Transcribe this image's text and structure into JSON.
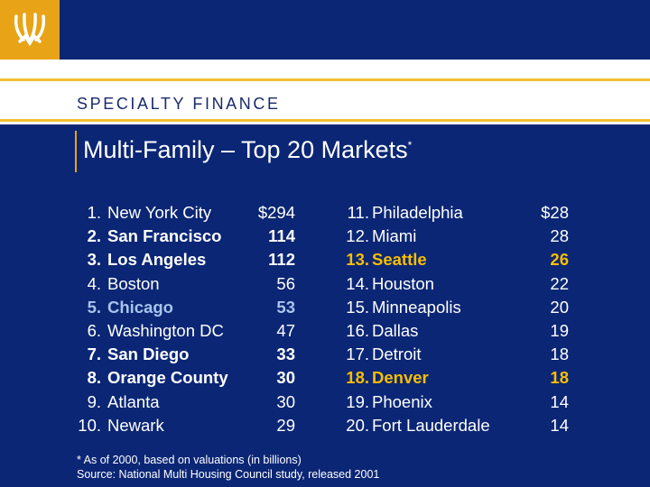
{
  "header": {
    "brand": "SPECIALTY FINANCE",
    "logo": "wheat-sheaf-logo"
  },
  "title": {
    "text": "Multi-Family – Top 20 Markets",
    "mark": "*"
  },
  "colors": {
    "background": "#0b2675",
    "gold": "#e8a317",
    "highlight_blue": "#a9c4ec",
    "highlight_gold": "#f6be00"
  },
  "left": [
    {
      "rank": "1.",
      "city": "New York City",
      "value": "$294",
      "style": ""
    },
    {
      "rank": "2.",
      "city": "San Francisco",
      "value": "114",
      "style": "b"
    },
    {
      "rank": "3.",
      "city": "Los Angeles",
      "value": "112",
      "style": "b"
    },
    {
      "rank": "4.",
      "city": "Boston",
      "value": "56",
      "style": ""
    },
    {
      "rank": "5.",
      "city": "Chicago",
      "value": "53",
      "style": "b chi"
    },
    {
      "rank": "6.",
      "city": "Washington DC",
      "value": "47",
      "style": ""
    },
    {
      "rank": "7.",
      "city": "San Diego",
      "value": "33",
      "style": "b"
    },
    {
      "rank": "8.",
      "city": "Orange County",
      "value": "30",
      "style": "b"
    },
    {
      "rank": "9.",
      "city": "Atlanta",
      "value": "30",
      "style": ""
    },
    {
      "rank": "10.",
      "city": "Newark",
      "value": "29",
      "style": ""
    }
  ],
  "right": [
    {
      "rank": "11.",
      "city": "Philadelphia",
      "value": "$28",
      "style": ""
    },
    {
      "rank": "12.",
      "city": "Miami",
      "value": "28",
      "style": ""
    },
    {
      "rank": "13.",
      "city": "Seattle",
      "value": "26",
      "style": "b gold"
    },
    {
      "rank": "14.",
      "city": "Houston",
      "value": "22",
      "style": ""
    },
    {
      "rank": "15.",
      "city": "Minneapolis",
      "value": "20",
      "style": ""
    },
    {
      "rank": "16.",
      "city": "Dallas",
      "value": "19",
      "style": ""
    },
    {
      "rank": "17.",
      "city": "Detroit",
      "value": "18",
      "style": ""
    },
    {
      "rank": "18.",
      "city": "Denver",
      "value": "18",
      "style": "b gold"
    },
    {
      "rank": "19.",
      "city": "Phoenix",
      "value": "14",
      "style": ""
    },
    {
      "rank": "20.",
      "city": "Fort Lauderdale",
      "value": "14",
      "style": ""
    }
  ],
  "footnote": {
    "line1": "* As of 2000, based on valuations (in billions)",
    "line2": "Source:  National Multi Housing Council study, released 2001"
  }
}
